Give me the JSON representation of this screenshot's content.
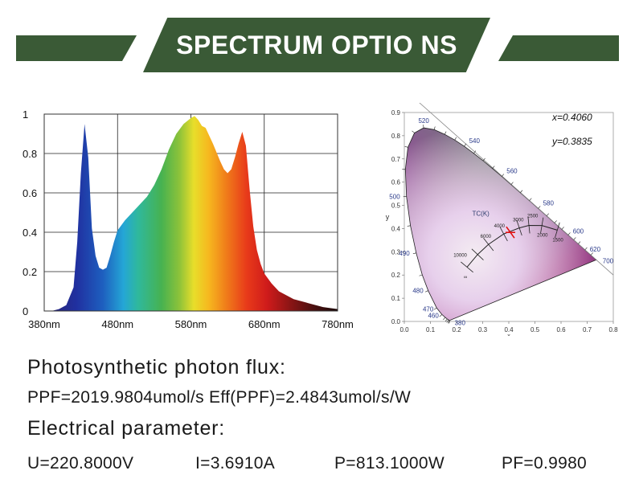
{
  "banner": {
    "title": "SPECTRUM OPTIO NS",
    "color": "#3a5a36"
  },
  "chart_data": [
    {
      "type": "area",
      "x_ticks": [
        "380nm",
        "480nm",
        "580nm",
        "680nm",
        "780nm"
      ],
      "x_range": [
        380,
        780
      ],
      "y_ticks": [
        "1",
        "0.8",
        "0.6",
        "0.4",
        "0.2",
        "0"
      ],
      "ylim": [
        0,
        1
      ],
      "grid": true,
      "x": [
        380,
        390,
        400,
        410,
        420,
        425,
        430,
        435,
        440,
        445,
        450,
        455,
        460,
        465,
        470,
        475,
        480,
        490,
        500,
        510,
        520,
        530,
        540,
        550,
        560,
        570,
        580,
        585,
        590,
        595,
        600,
        610,
        620,
        625,
        630,
        635,
        640,
        645,
        650,
        655,
        660,
        665,
        670,
        675,
        680,
        690,
        700,
        720,
        740,
        760,
        780
      ],
      "y": [
        0.0,
        0.0,
        0.01,
        0.03,
        0.12,
        0.35,
        0.7,
        0.95,
        0.78,
        0.42,
        0.28,
        0.22,
        0.21,
        0.22,
        0.28,
        0.35,
        0.41,
        0.46,
        0.5,
        0.54,
        0.58,
        0.64,
        0.72,
        0.82,
        0.9,
        0.95,
        0.98,
        0.99,
        0.97,
        0.94,
        0.93,
        0.85,
        0.76,
        0.72,
        0.7,
        0.72,
        0.78,
        0.85,
        0.91,
        0.84,
        0.62,
        0.43,
        0.31,
        0.24,
        0.19,
        0.14,
        0.1,
        0.06,
        0.04,
        0.02,
        0.01
      ]
    },
    {
      "type": "scatter",
      "x_ticks": [
        "0.0",
        "0.1",
        "0.2",
        "0.3",
        "0.4",
        "0.5",
        "0.6",
        "0.7",
        "0.8"
      ],
      "y_ticks": [
        "0.9",
        "0.8",
        "0.7",
        "0.6",
        "0.5",
        "0.4",
        "0.3",
        "0.2",
        "0.1",
        "0.0"
      ],
      "xlim": [
        0,
        0.8
      ],
      "ylim": [
        0,
        0.9
      ],
      "xlabel": "x",
      "ylabel": "y",
      "x": [
        0.406
      ],
      "y": [
        0.3835
      ],
      "x_readout": "x=0.4060",
      "y_readout": "y=0.3835",
      "wavelength_labels": [
        {
          "text": "380",
          "x": 0.1741,
          "y": 0.005
        },
        {
          "text": "460",
          "x": 0.144,
          "y": 0.0297
        },
        {
          "text": "470",
          "x": 0.1241,
          "y": 0.0578
        },
        {
          "text": "480",
          "x": 0.0913,
          "y": 0.1327
        },
        {
          "text": "490",
          "x": 0.0454,
          "y": 0.295
        },
        {
          "text": "500",
          "x": 0.0082,
          "y": 0.5384
        },
        {
          "text": "520",
          "x": 0.0743,
          "y": 0.8338
        },
        {
          "text": "540",
          "x": 0.2296,
          "y": 0.7543
        },
        {
          "text": "560",
          "x": 0.3731,
          "y": 0.6245
        },
        {
          "text": "580",
          "x": 0.5125,
          "y": 0.4866
        },
        {
          "text": "600",
          "x": 0.627,
          "y": 0.3725
        },
        {
          "text": "620",
          "x": 0.6915,
          "y": 0.3083
        },
        {
          "text": "700",
          "x": 0.7347,
          "y": 0.2653
        }
      ],
      "locus_label": "TC(K)",
      "cct_labels": [
        "10000",
        "6000",
        "4000",
        "3000",
        "2500",
        "2000",
        "1500",
        "∞"
      ]
    }
  ],
  "flux": {
    "heading": "Photosynthetic photon flux:",
    "ppf_text": "PPF=2019.9804umol/s  Eff(PPF)=2.4843umol/s/W"
  },
  "electrical": {
    "heading": "Electrical parameter:",
    "voltage": "U=220.8000V",
    "current": "I=3.6910A",
    "power": "P=813.1000W",
    "power_factor": "PF=0.9980"
  }
}
